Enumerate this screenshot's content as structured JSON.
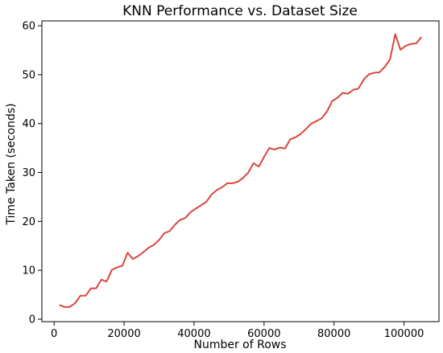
{
  "chart_data": {
    "type": "line",
    "title": "KNN Performance vs. Dataset Size",
    "xlabel": "Number of Rows",
    "ylabel": "Time Taken (seconds)",
    "xlim": [
      -3500,
      110000
    ],
    "ylim": [
      -0.5,
      61
    ],
    "xticks": [
      0,
      20000,
      40000,
      60000,
      80000,
      100000
    ],
    "yticks": [
      0,
      10,
      20,
      30,
      40,
      50,
      60
    ],
    "grid": false,
    "series": [
      {
        "color": "#d9463e",
        "x": [
          1500,
          3000,
          4500,
          6000,
          7500,
          9000,
          10500,
          12000,
          13500,
          15000,
          16500,
          18000,
          19500,
          21000,
          22500,
          24000,
          25500,
          27000,
          28500,
          30000,
          31500,
          33000,
          34500,
          36000,
          37500,
          39000,
          40500,
          42000,
          43500,
          45000,
          46500,
          48000,
          49500,
          51000,
          52500,
          54000,
          55500,
          57000,
          58500,
          60000,
          61500,
          63000,
          64500,
          66000,
          67500,
          69000,
          70500,
          72000,
          73500,
          75000,
          76500,
          78000,
          79500,
          81000,
          82500,
          84000,
          85500,
          87000,
          88500,
          90000,
          91500,
          93000,
          94500,
          96000,
          97500,
          99000,
          100500,
          102000,
          103500,
          105000
        ],
        "y": [
          2.9,
          2.5,
          2.5,
          3.3,
          4.8,
          4.8,
          6.3,
          6.3,
          8.1,
          7.7,
          10.1,
          10.6,
          10.9,
          13.6,
          12.3,
          12.9,
          13.7,
          14.6,
          15.2,
          16.2,
          17.6,
          18.0,
          19.3,
          20.3,
          20.7,
          21.9,
          22.6,
          23.3,
          24.0,
          25.5,
          26.4,
          27.0,
          27.8,
          27.8,
          28.1,
          28.9,
          30.0,
          31.9,
          31.2,
          33.2,
          35.0,
          34.7,
          35.1,
          34.9,
          36.8,
          37.2,
          37.9,
          38.9,
          40.0,
          40.5,
          41.1,
          42.5,
          44.6,
          45.3,
          46.3,
          46.1,
          46.9,
          47.2,
          49.0,
          50.1,
          50.4,
          50.5,
          51.6,
          53.1,
          58.3,
          55.1,
          55.9,
          56.3,
          56.4,
          57.7
        ]
      }
    ]
  }
}
